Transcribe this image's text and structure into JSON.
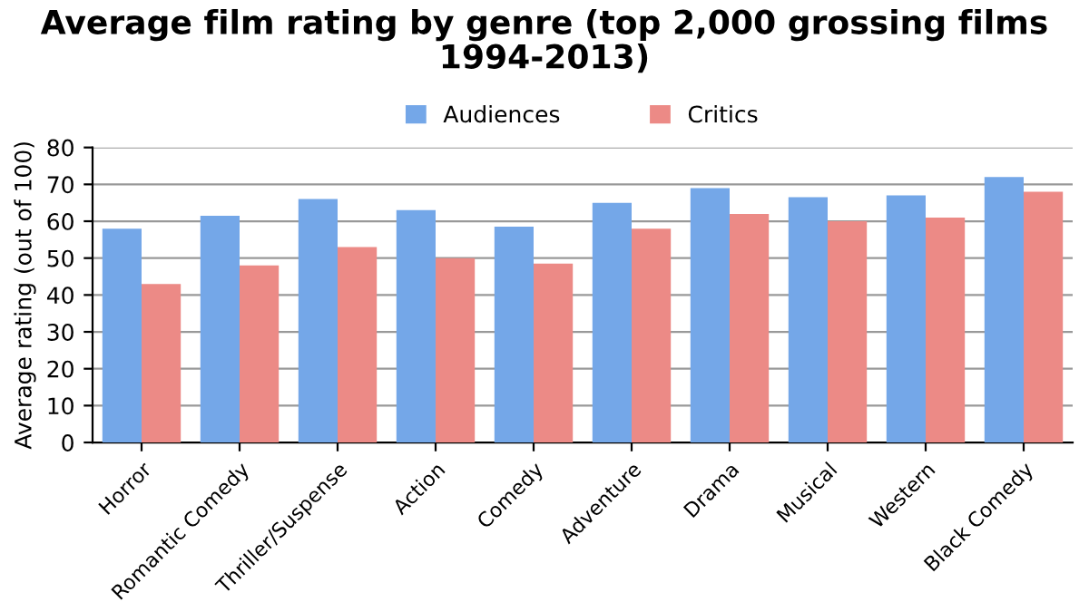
{
  "chart_data": {
    "type": "bar",
    "title": "Average film rating by genre (top 2,000 grossing films\n1994-2013)",
    "ylabel": "Average rating (out of 100)",
    "categories": [
      "Horror",
      "Romantic Comedy",
      "Thriller/Suspense",
      "Action",
      "Comedy",
      "Adventure",
      "Drama",
      "Musical",
      "Western",
      "Black Comedy"
    ],
    "series": [
      {
        "name": "Audiences",
        "color": "#74a7e8",
        "values": [
          58,
          61.5,
          66,
          63,
          58.5,
          65,
          69,
          66.5,
          67,
          72
        ]
      },
      {
        "name": "Critics",
        "color": "#ec8a86",
        "values": [
          43,
          48,
          53,
          50,
          48.5,
          58,
          62,
          60,
          61,
          68
        ]
      }
    ],
    "ylim": [
      0,
      80
    ],
    "yticks": [
      0,
      10,
      20,
      30,
      40,
      50,
      60,
      70,
      80
    ],
    "grid": "y",
    "legend": "top"
  }
}
